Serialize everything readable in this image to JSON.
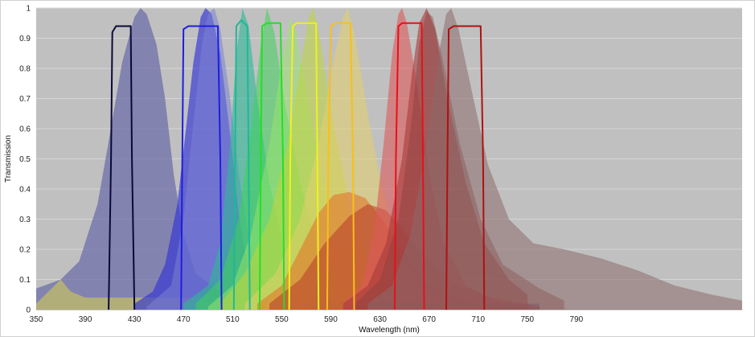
{
  "chart_data": {
    "type": "area",
    "title": "",
    "xlabel": "Wavelength (nm)",
    "ylabel": "Transmission",
    "xlim": [
      350,
      925
    ],
    "ylim": [
      0,
      1
    ],
    "x_ticks": [
      350,
      390,
      430,
      470,
      510,
      550,
      590,
      630,
      670,
      710,
      750,
      790
    ],
    "y_ticks": [
      0,
      0.1,
      0.2,
      0.3,
      0.4,
      0.5,
      0.6,
      0.7,
      0.8,
      0.9,
      1
    ],
    "grid": "horizontal",
    "legend": "none",
    "background": "#c0c0c0",
    "series": [
      {
        "kind": "emission",
        "color": "#6a6aa8",
        "opacity": 0.7,
        "points": [
          [
            350,
            0.07
          ],
          [
            370,
            0.1
          ],
          [
            385,
            0.16
          ],
          [
            400,
            0.35
          ],
          [
            410,
            0.58
          ],
          [
            420,
            0.82
          ],
          [
            430,
            0.97
          ],
          [
            435,
            1.0
          ],
          [
            440,
            0.98
          ],
          [
            448,
            0.88
          ],
          [
            455,
            0.7
          ],
          [
            462,
            0.45
          ],
          [
            470,
            0.25
          ],
          [
            480,
            0.12
          ],
          [
            500,
            0.06
          ],
          [
            540,
            0.04
          ],
          [
            600,
            0.03
          ],
          [
            700,
            0.02
          ],
          [
            760,
            0.02
          ]
        ]
      },
      {
        "kind": "emission",
        "color": "#c9c45e",
        "opacity": 0.65,
        "points": [
          [
            350,
            0.02
          ],
          [
            360,
            0.06
          ],
          [
            370,
            0.1
          ],
          [
            378,
            0.06
          ],
          [
            390,
            0.04
          ],
          [
            430,
            0.04
          ],
          [
            500,
            0.04
          ],
          [
            560,
            0.03
          ]
        ]
      },
      {
        "kind": "emission",
        "color": "#3232d6",
        "opacity": 0.65,
        "points": [
          [
            430,
            0.02
          ],
          [
            445,
            0.06
          ],
          [
            455,
            0.15
          ],
          [
            465,
            0.35
          ],
          [
            472,
            0.6
          ],
          [
            478,
            0.82
          ],
          [
            484,
            0.97
          ],
          [
            488,
            1.0
          ],
          [
            493,
            0.98
          ],
          [
            500,
            0.85
          ],
          [
            508,
            0.58
          ],
          [
            515,
            0.32
          ],
          [
            522,
            0.15
          ],
          [
            535,
            0.06
          ],
          [
            560,
            0.03
          ],
          [
            620,
            0.02
          ]
        ]
      },
      {
        "kind": "emission",
        "color": "#7a82d2",
        "opacity": 0.55,
        "points": [
          [
            440,
            0.01
          ],
          [
            460,
            0.08
          ],
          [
            470,
            0.3
          ],
          [
            478,
            0.62
          ],
          [
            485,
            0.88
          ],
          [
            490,
            0.98
          ],
          [
            495,
            1.0
          ],
          [
            500,
            0.93
          ],
          [
            508,
            0.7
          ],
          [
            515,
            0.45
          ],
          [
            525,
            0.2
          ],
          [
            540,
            0.07
          ],
          [
            570,
            0.02
          ]
        ]
      },
      {
        "kind": "emission",
        "color": "#2cb896",
        "opacity": 0.6,
        "points": [
          [
            470,
            0.02
          ],
          [
            490,
            0.08
          ],
          [
            500,
            0.22
          ],
          [
            508,
            0.55
          ],
          [
            513,
            0.85
          ],
          [
            518,
            1.0
          ],
          [
            523,
            0.94
          ],
          [
            530,
            0.7
          ],
          [
            540,
            0.42
          ],
          [
            552,
            0.2
          ],
          [
            568,
            0.08
          ],
          [
            600,
            0.02
          ]
        ]
      },
      {
        "kind": "emission",
        "color": "#3ed25a",
        "opacity": 0.55,
        "points": [
          [
            480,
            0.02
          ],
          [
            500,
            0.1
          ],
          [
            515,
            0.3
          ],
          [
            525,
            0.6
          ],
          [
            533,
            0.88
          ],
          [
            538,
            1.0
          ],
          [
            544,
            0.92
          ],
          [
            552,
            0.7
          ],
          [
            565,
            0.42
          ],
          [
            580,
            0.2
          ],
          [
            600,
            0.08
          ],
          [
            630,
            0.02
          ]
        ]
      },
      {
        "kind": "emission",
        "color": "#98e66a",
        "opacity": 0.5,
        "points": [
          [
            490,
            0.01
          ],
          [
            510,
            0.08
          ],
          [
            525,
            0.25
          ],
          [
            540,
            0.55
          ],
          [
            550,
            0.82
          ],
          [
            557,
            0.97
          ],
          [
            562,
            0.92
          ],
          [
            570,
            0.72
          ],
          [
            582,
            0.45
          ],
          [
            600,
            0.22
          ],
          [
            620,
            0.08
          ],
          [
            650,
            0.02
          ]
        ]
      },
      {
        "kind": "emission",
        "color": "#bed63a",
        "opacity": 0.55,
        "points": [
          [
            500,
            0.02
          ],
          [
            520,
            0.12
          ],
          [
            540,
            0.3
          ],
          [
            555,
            0.55
          ],
          [
            565,
            0.8
          ],
          [
            572,
            0.97
          ],
          [
            576,
            1.0
          ],
          [
            582,
            0.88
          ],
          [
            592,
            0.62
          ],
          [
            605,
            0.35
          ],
          [
            620,
            0.15
          ],
          [
            645,
            0.04
          ],
          [
            670,
            0.01
          ]
        ]
      },
      {
        "kind": "emission",
        "color": "#e2d06a",
        "opacity": 0.55,
        "points": [
          [
            520,
            0.02
          ],
          [
            545,
            0.12
          ],
          [
            565,
            0.3
          ],
          [
            580,
            0.55
          ],
          [
            592,
            0.82
          ],
          [
            600,
            0.97
          ],
          [
            604,
            1.0
          ],
          [
            610,
            0.9
          ],
          [
            620,
            0.65
          ],
          [
            632,
            0.4
          ],
          [
            645,
            0.2
          ],
          [
            665,
            0.06
          ],
          [
            700,
            0.01
          ]
        ]
      },
      {
        "kind": "emission",
        "color": "#e3762a",
        "opacity": 0.6,
        "points": [
          [
            530,
            0.02
          ],
          [
            550,
            0.08
          ],
          [
            565,
            0.2
          ],
          [
            580,
            0.32
          ],
          [
            592,
            0.38
          ],
          [
            605,
            0.39
          ],
          [
            618,
            0.37
          ],
          [
            632,
            0.3
          ],
          [
            648,
            0.2
          ],
          [
            665,
            0.1
          ],
          [
            690,
            0.04
          ],
          [
            720,
            0.01
          ]
        ]
      },
      {
        "kind": "emission",
        "color": "#b83a2a",
        "opacity": 0.55,
        "points": [
          [
            540,
            0.02
          ],
          [
            565,
            0.1
          ],
          [
            585,
            0.22
          ],
          [
            605,
            0.31
          ],
          [
            620,
            0.35
          ],
          [
            635,
            0.33
          ],
          [
            650,
            0.26
          ],
          [
            668,
            0.17
          ],
          [
            690,
            0.09
          ],
          [
            720,
            0.04
          ],
          [
            760,
            0.01
          ]
        ]
      },
      {
        "kind": "emission",
        "color": "#dc5a5a",
        "opacity": 0.6,
        "points": [
          [
            600,
            0.02
          ],
          [
            615,
            0.08
          ],
          [
            625,
            0.25
          ],
          [
            633,
            0.55
          ],
          [
            640,
            0.85
          ],
          [
            645,
            0.98
          ],
          [
            648,
            1.0
          ],
          [
            652,
            0.95
          ],
          [
            660,
            0.75
          ],
          [
            670,
            0.45
          ],
          [
            682,
            0.22
          ],
          [
            700,
            0.08
          ],
          [
            730,
            0.02
          ]
        ]
      },
      {
        "kind": "emission",
        "color": "#a83a3a",
        "opacity": 0.6,
        "points": [
          [
            600,
            0.02
          ],
          [
            620,
            0.08
          ],
          [
            635,
            0.22
          ],
          [
            648,
            0.5
          ],
          [
            656,
            0.78
          ],
          [
            662,
            0.95
          ],
          [
            668,
            1.0
          ],
          [
            675,
            0.93
          ],
          [
            685,
            0.7
          ],
          [
            700,
            0.42
          ],
          [
            715,
            0.22
          ],
          [
            735,
            0.1
          ],
          [
            750,
            0.05
          ],
          [
            751,
            0.0
          ]
        ]
      },
      {
        "kind": "emission",
        "color": "#8a4040",
        "opacity": 0.45,
        "points": [
          [
            610,
            0.02
          ],
          [
            630,
            0.1
          ],
          [
            645,
            0.3
          ],
          [
            655,
            0.6
          ],
          [
            662,
            0.88
          ],
          [
            668,
            0.99
          ],
          [
            673,
            0.97
          ],
          [
            680,
            0.85
          ],
          [
            695,
            0.55
          ],
          [
            712,
            0.3
          ],
          [
            730,
            0.15
          ],
          [
            760,
            0.07
          ],
          [
            780,
            0.03
          ]
        ]
      },
      {
        "kind": "emission",
        "color": "#8c6a6a",
        "opacity": 0.55,
        "points": [
          [
            620,
            0.02
          ],
          [
            640,
            0.08
          ],
          [
            655,
            0.25
          ],
          [
            668,
            0.55
          ],
          [
            678,
            0.85
          ],
          [
            684,
            0.98
          ],
          [
            688,
            1.0
          ],
          [
            694,
            0.93
          ],
          [
            705,
            0.72
          ],
          [
            718,
            0.48
          ],
          [
            735,
            0.3
          ],
          [
            755,
            0.22
          ],
          [
            780,
            0.2
          ],
          [
            810,
            0.17
          ],
          [
            840,
            0.13
          ],
          [
            870,
            0.08
          ],
          [
            900,
            0.05
          ],
          [
            925,
            0.03
          ]
        ]
      },
      {
        "kind": "filter",
        "color": "#0a0a3a",
        "width": 2,
        "points": [
          [
            409,
            0
          ],
          [
            411,
            0.5
          ],
          [
            412,
            0.92
          ],
          [
            415,
            0.94
          ],
          [
            427,
            0.94
          ],
          [
            428,
            0.5
          ],
          [
            430,
            0
          ]
        ]
      },
      {
        "kind": "filter",
        "color": "#1e1ee0",
        "width": 2,
        "points": [
          [
            468,
            0
          ],
          [
            469,
            0.5
          ],
          [
            470,
            0.93
          ],
          [
            474,
            0.94
          ],
          [
            498,
            0.94
          ],
          [
            500,
            0.5
          ],
          [
            501,
            0
          ]
        ]
      },
      {
        "kind": "filter",
        "color": "#1fb898",
        "width": 2,
        "points": [
          [
            511,
            0
          ],
          [
            512,
            0.5
          ],
          [
            513,
            0.94
          ],
          [
            517,
            0.96
          ],
          [
            522,
            0.94
          ],
          [
            523,
            0.5
          ],
          [
            524,
            0
          ]
        ]
      },
      {
        "kind": "filter",
        "color": "#22e022",
        "width": 2,
        "points": [
          [
            532,
            0
          ],
          [
            533,
            0.5
          ],
          [
            534,
            0.94
          ],
          [
            538,
            0.95
          ],
          [
            549,
            0.95
          ],
          [
            551,
            0.5
          ],
          [
            552,
            0
          ]
        ]
      },
      {
        "kind": "filter",
        "color": "#f0f020",
        "width": 2,
        "points": [
          [
            556,
            0
          ],
          [
            557,
            0.5
          ],
          [
            559,
            0.94
          ],
          [
            562,
            0.95
          ],
          [
            578,
            0.95
          ],
          [
            579,
            0.5
          ],
          [
            580,
            0
          ]
        ]
      },
      {
        "kind": "filter",
        "color": "#f8bf1a",
        "width": 2,
        "points": [
          [
            587,
            0
          ],
          [
            588,
            0.5
          ],
          [
            590,
            0.94
          ],
          [
            594,
            0.95
          ],
          [
            606,
            0.95
          ],
          [
            608,
            0.5
          ],
          [
            609,
            0
          ]
        ]
      },
      {
        "kind": "filter",
        "color": "#e8101a",
        "width": 2,
        "points": [
          [
            642,
            0
          ],
          [
            643,
            0.5
          ],
          [
            645,
            0.94
          ],
          [
            648,
            0.95
          ],
          [
            664,
            0.95
          ],
          [
            665,
            0.5
          ],
          [
            666,
            0
          ]
        ]
      },
      {
        "kind": "filter",
        "color": "#b01010",
        "width": 2,
        "points": [
          [
            684,
            0
          ],
          [
            685,
            0.5
          ],
          [
            686,
            0.93
          ],
          [
            690,
            0.94
          ],
          [
            712,
            0.94
          ],
          [
            714,
            0.5
          ],
          [
            715,
            0
          ]
        ]
      }
    ]
  }
}
